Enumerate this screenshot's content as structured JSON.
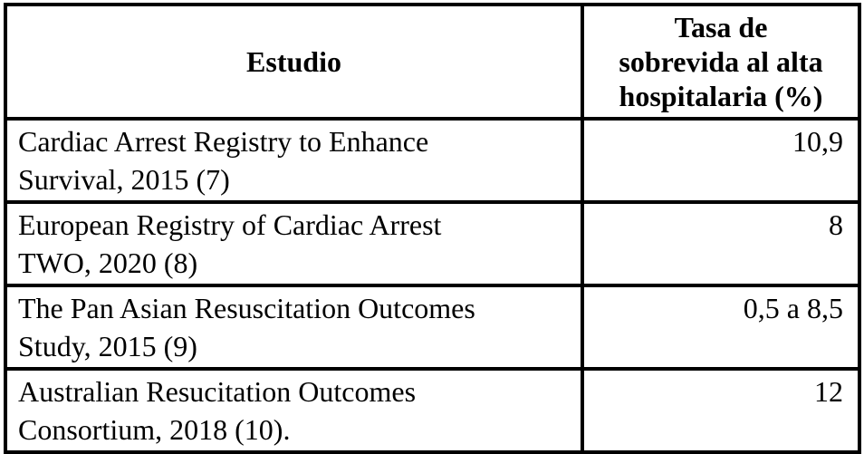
{
  "table": {
    "headers": [
      {
        "label": "Estudio"
      },
      {
        "label": "Tasa de sobrevida al alta hospitalaria (%)",
        "lines": [
          "Tasa de",
          "sobrevida al alta",
          "hospitalaria (%)"
        ]
      }
    ],
    "rows": [
      {
        "estudio": "Cardiac Arrest Registry to Enhance Survival, 2015 (7)",
        "estudio_lines": [
          "Cardiac Arrest Registry to Enhance",
          "Survival, 2015 (7)"
        ],
        "tasa": "10,9"
      },
      {
        "estudio": "European Registry of Cardiac Arrest TWO, 2020 (8)",
        "estudio_lines": [
          "European Registry of Cardiac Arrest",
          "TWO, 2020 (8)"
        ],
        "tasa": "8"
      },
      {
        "estudio": "The Pan Asian Resuscitation Outcomes Study, 2015 (9)",
        "estudio_lines": [
          "The Pan Asian Resuscitation Outcomes",
          "Study, 2015 (9)"
        ],
        "tasa": "0,5 a 8,5"
      },
      {
        "estudio": "Australian Resucitation Outcomes Consortium, 2018 (10).",
        "estudio_lines": [
          "Australian Resucitation Outcomes",
          "Consortium, 2018 (10)."
        ],
        "tasa": "12"
      }
    ]
  },
  "colors": {
    "border": "#000000",
    "text": "#000000",
    "background": "#ffffff"
  }
}
